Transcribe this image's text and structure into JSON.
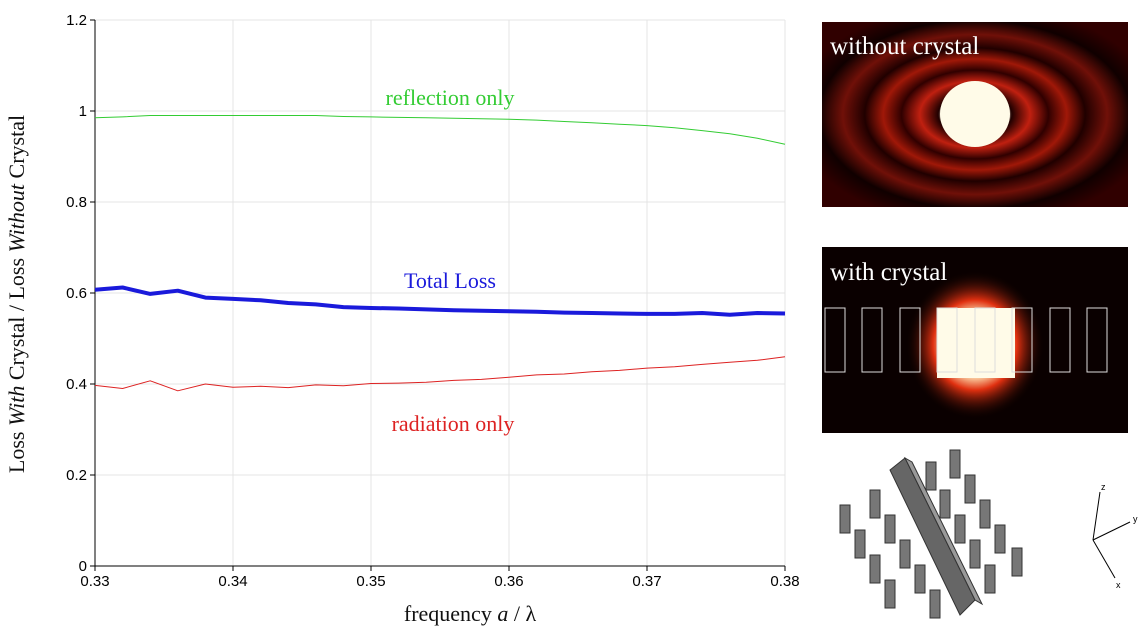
{
  "chart_data": {
    "type": "line",
    "x": [
      0.33,
      0.332,
      0.334,
      0.336,
      0.338,
      0.34,
      0.342,
      0.344,
      0.346,
      0.348,
      0.35,
      0.352,
      0.354,
      0.356,
      0.358,
      0.36,
      0.362,
      0.364,
      0.366,
      0.368,
      0.37,
      0.372,
      0.374,
      0.376,
      0.378,
      0.38
    ],
    "series": [
      {
        "name": "reflection only",
        "color": "#33cc33",
        "width": 1,
        "values": [
          0.985,
          0.987,
          0.99,
          0.99,
          0.99,
          0.99,
          0.99,
          0.99,
          0.99,
          0.988,
          0.987,
          0.986,
          0.985,
          0.984,
          0.983,
          0.982,
          0.98,
          0.977,
          0.974,
          0.971,
          0.968,
          0.963,
          0.957,
          0.95,
          0.94,
          0.927
        ]
      },
      {
        "name": "Total Loss",
        "color": "#1a1adb",
        "width": 4,
        "values": [
          0.607,
          0.612,
          0.598,
          0.605,
          0.59,
          0.587,
          0.584,
          0.578,
          0.575,
          0.569,
          0.567,
          0.566,
          0.564,
          0.562,
          0.561,
          0.56,
          0.559,
          0.557,
          0.556,
          0.555,
          0.554,
          0.554,
          0.556,
          0.552,
          0.556,
          0.555
        ]
      },
      {
        "name": "radiation only",
        "color": "#dd2222",
        "width": 1,
        "values": [
          0.397,
          0.39,
          0.407,
          0.385,
          0.4,
          0.393,
          0.395,
          0.392,
          0.398,
          0.396,
          0.401,
          0.402,
          0.404,
          0.408,
          0.41,
          0.415,
          0.42,
          0.422,
          0.427,
          0.43,
          0.435,
          0.438,
          0.443,
          0.448,
          0.452,
          0.46
        ]
      }
    ],
    "x_label": [
      "frequency ",
      "a",
      " / λ"
    ],
    "y_label": [
      "Loss ",
      "With",
      " Crystal / Loss ",
      "Without",
      " Crystal"
    ],
    "xlim": [
      0.33,
      0.38
    ],
    "xticks": [
      0.33,
      0.34,
      0.35,
      0.36,
      0.37,
      0.38
    ],
    "ylim": [
      0,
      1.2
    ],
    "yticks": [
      0,
      0.2,
      0.4,
      0.6,
      0.8,
      1,
      1.2
    ],
    "grid": true
  },
  "panels": [
    "without crystal",
    "with crystal"
  ],
  "axes_icon": [
    "z",
    "y",
    "x"
  ]
}
